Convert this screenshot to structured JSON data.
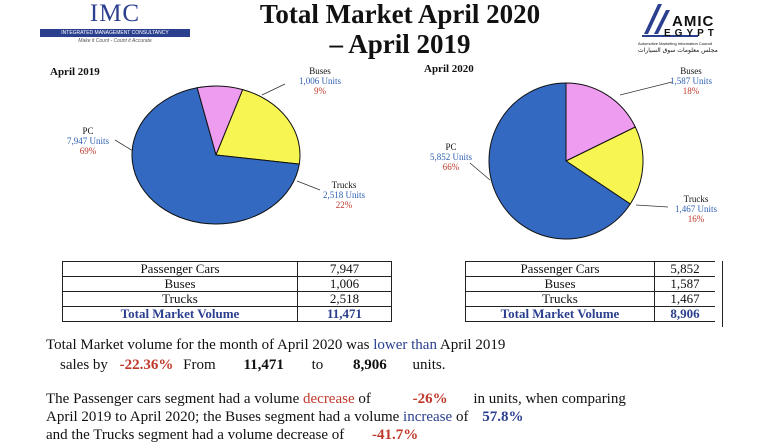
{
  "header": {
    "imc_logo_name": "IMC",
    "imc_logo_subtitle": "INTEGRATED MANAGEMENT CONSULTANCY",
    "imc_logo_tagline": "Make it Count - Count it Accurate",
    "title_line1": "Total Market April 2020",
    "title_line2": "– April 2019",
    "amic_logo_top": "AMIC",
    "amic_logo_bottom": "EGYPT",
    "amic_logo_caption": "Automotive Marketing Information Council",
    "amic_logo_arabic": "مجلس معلومات سوق السيارات"
  },
  "colors": {
    "pc": "#3469c1",
    "buses": "#ee9cf0",
    "trucks": "#f7f552",
    "brand": "#2b3f8f",
    "highlight_red": "#c0392b"
  },
  "chart_data": [
    {
      "type": "pie",
      "title": "April 2019",
      "slices": [
        {
          "name": "PC",
          "units_label": "7,947 Units",
          "value": 7947,
          "percent_label": "69%"
        },
        {
          "name": "Buses",
          "units_label": "1,006 Units",
          "value": 1006,
          "percent_label": "9%"
        },
        {
          "name": "Trucks",
          "units_label": "2,518 Units",
          "value": 2518,
          "percent_label": "22%"
        }
      ]
    },
    {
      "type": "pie",
      "title": "April 2020",
      "slices": [
        {
          "name": "PC",
          "units_label": "5,852 Units",
          "value": 5852,
          "percent_label": "66%"
        },
        {
          "name": "Buses",
          "units_label": "1,587 Units",
          "value": 1587,
          "percent_label": "18%"
        },
        {
          "name": "Trucks",
          "units_label": "1,467 Units",
          "value": 1467,
          "percent_label": "16%"
        }
      ]
    }
  ],
  "tables": [
    {
      "rows": [
        {
          "label": "Passenger Cars",
          "value": "7,947"
        },
        {
          "label": "Buses",
          "value": "1,006"
        },
        {
          "label": "Trucks",
          "value": "2,518"
        }
      ],
      "total": {
        "label": "Total Market Volume",
        "value": "11,471"
      }
    },
    {
      "rows": [
        {
          "label": "Passenger Cars",
          "value": "5,852"
        },
        {
          "label": "Buses",
          "value": "1,587"
        },
        {
          "label": "Trucks",
          "value": "1,467"
        }
      ],
      "total": {
        "label": "Total Market Volume",
        "value": "8,906"
      }
    }
  ],
  "summary": {
    "line1_text": "Total Market volume for the month of April 2020 was",
    "line1_highlight": "lower than",
    "line1_end": "April 2019",
    "line2_start": "sales by",
    "line2_change": "-22.36%",
    "line2_from": "From",
    "line2_value_from": "11,471",
    "line2_to": "to",
    "line2_value_to": "8,906",
    "line2_end": "units.",
    "line3_start": "The Passenger cars segment had a volume",
    "line3_highlight": "decrease",
    "line3_of": "of",
    "line3_change": "-26%",
    "line3_end": "in units, when comparing",
    "line4_start": "April 2019 to April 2020; the Buses segment had a volume",
    "line4_highlight": "increase",
    "line4_of": "of",
    "line4_change": "57.8%",
    "line5_text": "and the Trucks segment had a volume decrease of",
    "line5_change": "-41.7%"
  }
}
